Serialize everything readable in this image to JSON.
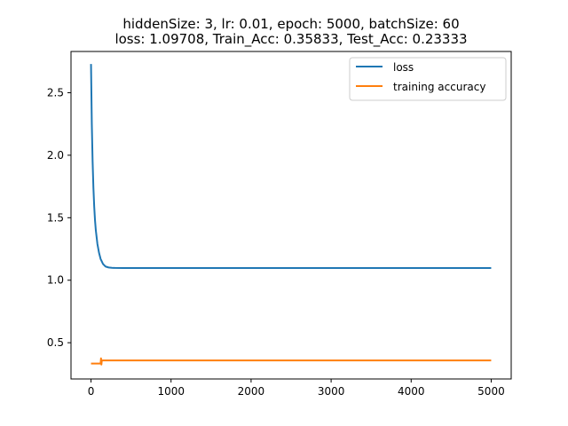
{
  "chart_data": {
    "type": "line",
    "title_line1": "hiddenSize: 3, lr: 0.01, epoch: 5000, batchSize: 60",
    "title_line2": "loss: 1.09708, Train_Acc: 0.35833, Test_Acc: 0.23333",
    "xlabel": "",
    "ylabel": "",
    "xlim": [
      -250,
      5250
    ],
    "ylim": [
      0.21,
      2.83
    ],
    "xticks": [
      0,
      1000,
      2000,
      3000,
      4000,
      5000
    ],
    "xtick_labels": [
      "0",
      "1000",
      "2000",
      "3000",
      "4000",
      "5000"
    ],
    "yticks": [
      0.5,
      1.0,
      1.5,
      2.0,
      2.5
    ],
    "ytick_labels": [
      "0.5",
      "1.0",
      "1.5",
      "2.0",
      "2.5"
    ],
    "grid": false,
    "legend_position": "top-right",
    "series": [
      {
        "name": "loss",
        "color": "#1f77b4",
        "x": [
          0,
          10,
          20,
          30,
          40,
          50,
          60,
          80,
          100,
          120,
          150,
          180,
          220,
          260,
          300,
          400,
          500,
          1000,
          2000,
          3000,
          4000,
          5000
        ],
        "y": [
          2.73,
          2.25,
          1.95,
          1.74,
          1.59,
          1.48,
          1.4,
          1.29,
          1.22,
          1.17,
          1.13,
          1.11,
          1.102,
          1.099,
          1.098,
          1.0975,
          1.0974,
          1.0973,
          1.0972,
          1.0971,
          1.0971,
          1.0971
        ]
      },
      {
        "name": "training accuracy",
        "color": "#ff7f0e",
        "x": [
          0,
          120,
          125,
          130,
          135,
          140,
          5000
        ],
        "y": [
          0.333,
          0.333,
          0.375,
          0.325,
          0.358,
          0.358,
          0.358
        ]
      }
    ]
  }
}
